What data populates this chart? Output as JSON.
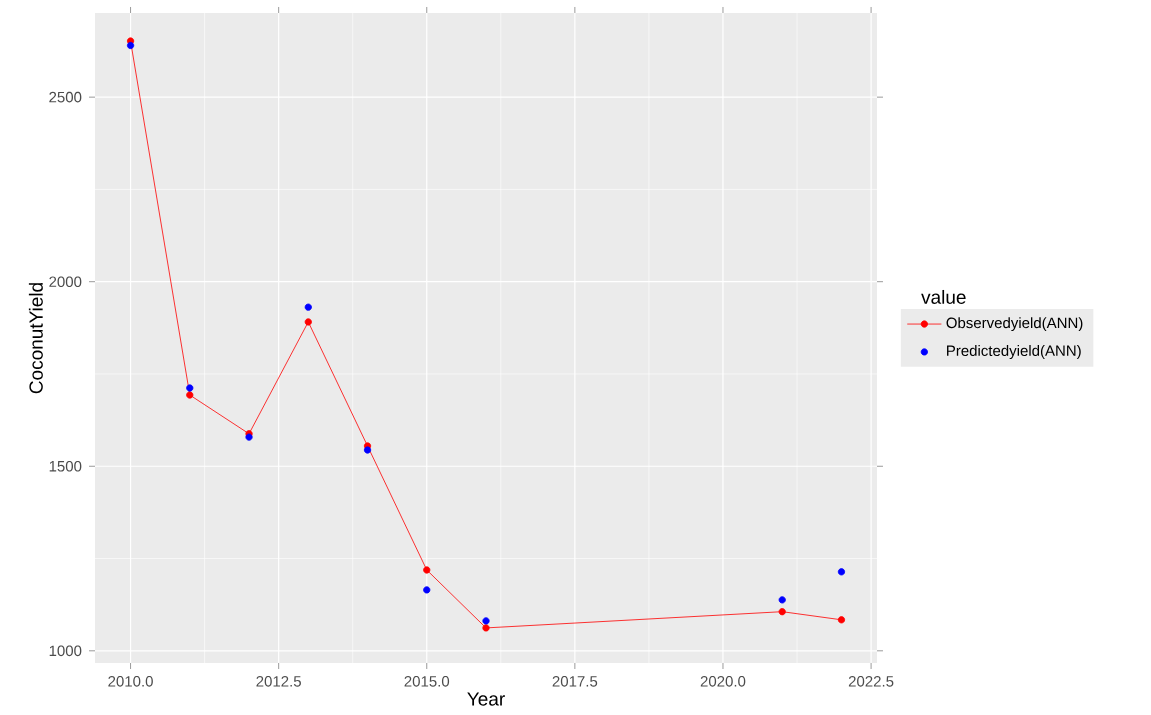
{
  "chart_data": {
    "type": "line",
    "xlabel": "Year",
    "ylabel": "CoconutYield",
    "legend_title": "value",
    "x": [
      2010,
      2011,
      2012,
      2013,
      2014,
      2015,
      2016,
      2021,
      2022
    ],
    "series": [
      {
        "name": "Observedyield(ANN)",
        "marker": "circle",
        "color": "#ff0000",
        "values": [
          2652,
          1693,
          1588,
          1891,
          1555,
          1219,
          1062,
          1106,
          1084
        ]
      },
      {
        "name": "Predictedyield(ANN)",
        "type": "scatter",
        "marker": "circle",
        "color": "#0000ff",
        "values": [
          2640,
          1712,
          1579,
          1931,
          1544,
          1165,
          1081,
          1138,
          1214
        ]
      }
    ],
    "xlim": [
      2009.4,
      2022.6
    ],
    "ylim": [
      967,
      2728
    ],
    "xticks": [
      {
        "value": 2010,
        "label": "2010.0"
      },
      {
        "value": 2012.5,
        "label": "2012.5"
      },
      {
        "value": 2015,
        "label": "2015.0"
      },
      {
        "value": 2017.5,
        "label": "2017.5"
      },
      {
        "value": 2020,
        "label": "2020.0"
      },
      {
        "value": 2022.5,
        "label": "2022.5"
      }
    ],
    "yticks": [
      1000,
      1500,
      2000,
      2500
    ],
    "grid": true,
    "legend": "right"
  }
}
